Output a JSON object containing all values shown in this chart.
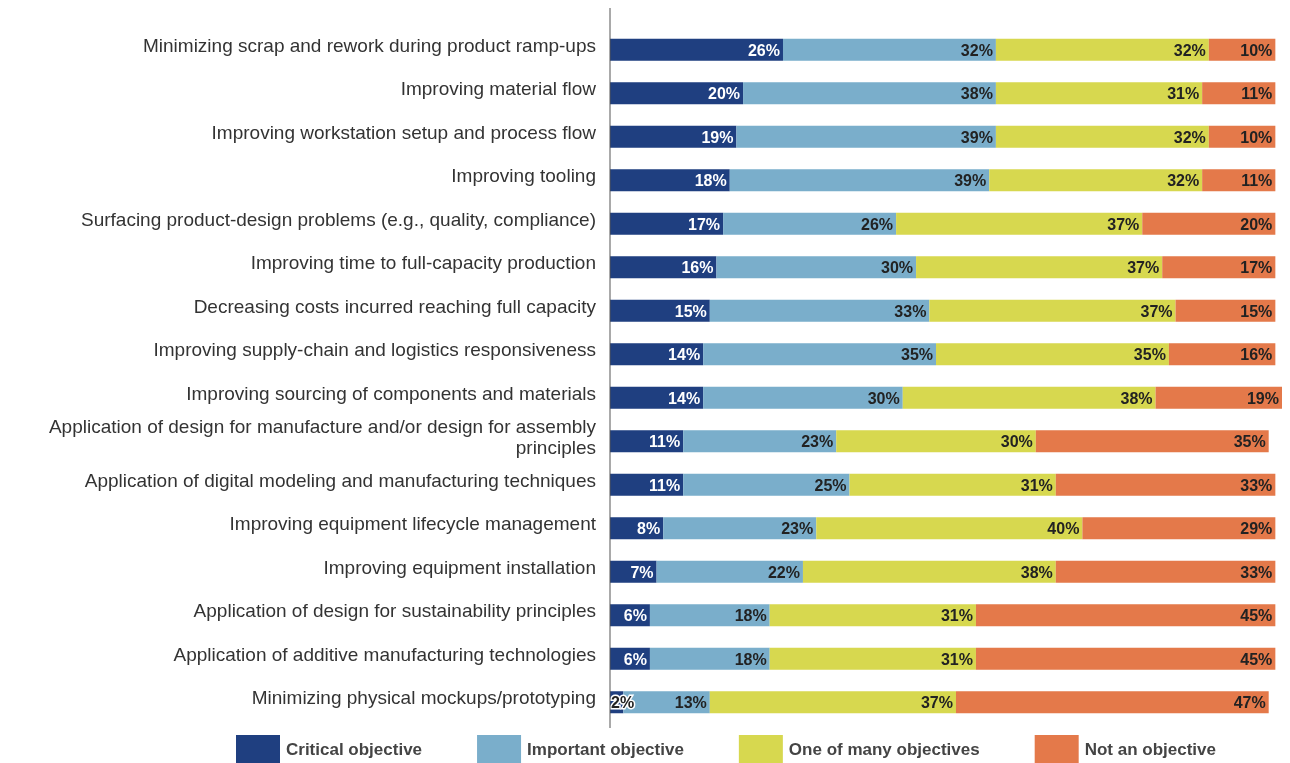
{
  "chart_data": {
    "type": "bar",
    "orientation": "horizontal",
    "stacked": true,
    "legend": "bottom",
    "tick_labels": "y",
    "categories": [
      "Minimizing scrap and rework during product ramp-ups",
      "Improving material flow",
      "Improving workstation setup and process flow",
      "Improving tooling",
      "Surfacing product-design problems (e.g., quality, compliance)",
      "Improving time to full-capacity production",
      "Decreasing costs incurred reaching full capacity",
      "Improving supply-chain and logistics responsiveness",
      "Improving sourcing of components and materials",
      "Application of design for manufacture and/or design for assembly principles",
      "Application of digital modeling and manufacturing techniques",
      "Improving equipment lifecycle management",
      "Improving equipment installation",
      "Application of design for sustainability principles",
      "Application of additive manufacturing technologies",
      "Minimizing physical mockups/prototyping"
    ],
    "series": [
      {
        "name": "Critical objective",
        "color": "#1f3f80",
        "values": [
          26,
          20,
          19,
          18,
          17,
          16,
          15,
          14,
          14,
          11,
          11,
          8,
          7,
          6,
          6,
          2
        ],
        "value_labels": [
          "26%",
          "20%",
          "19%",
          "18%",
          "17%",
          "16%",
          "15%",
          "14%",
          "14%",
          "11%",
          "11%",
          "8%",
          "7%",
          "6%",
          "6%",
          "2%"
        ]
      },
      {
        "name": "Important objective",
        "color": "#7aaecb",
        "values": [
          32,
          38,
          39,
          39,
          26,
          30,
          33,
          35,
          30,
          23,
          25,
          23,
          22,
          18,
          18,
          13
        ],
        "value_labels": [
          "32%",
          "38%",
          "39%",
          "39%",
          "26%",
          "30%",
          "33%",
          "35%",
          "30%",
          "23%",
          "25%",
          "23%",
          "22%",
          "18%",
          "18%",
          "13%"
        ]
      },
      {
        "name": "One of many objectives",
        "color": "#d7d84f",
        "values": [
          32,
          31,
          32,
          32,
          37,
          37,
          37,
          35,
          38,
          30,
          31,
          40,
          38,
          31,
          31,
          37
        ],
        "value_labels": [
          "32%",
          "31%",
          "32%",
          "32%",
          "37%",
          "37%",
          "37%",
          "35%",
          "38%",
          "30%",
          "31%",
          "40%",
          "38%",
          "31%",
          "31%",
          "37%"
        ]
      },
      {
        "name": "Not an objective",
        "color": "#e4794a",
        "values": [
          10,
          11,
          10,
          11,
          20,
          17,
          15,
          16,
          19,
          35,
          33,
          29,
          33,
          45,
          45,
          47
        ],
        "value_labels": [
          "10%",
          "11%",
          "10%",
          "11%",
          "20%",
          "17%",
          "15%",
          "16%",
          "19%",
          "35%",
          "33%",
          "29%",
          "33%",
          "45%",
          "45%",
          "47%"
        ]
      }
    ]
  }
}
